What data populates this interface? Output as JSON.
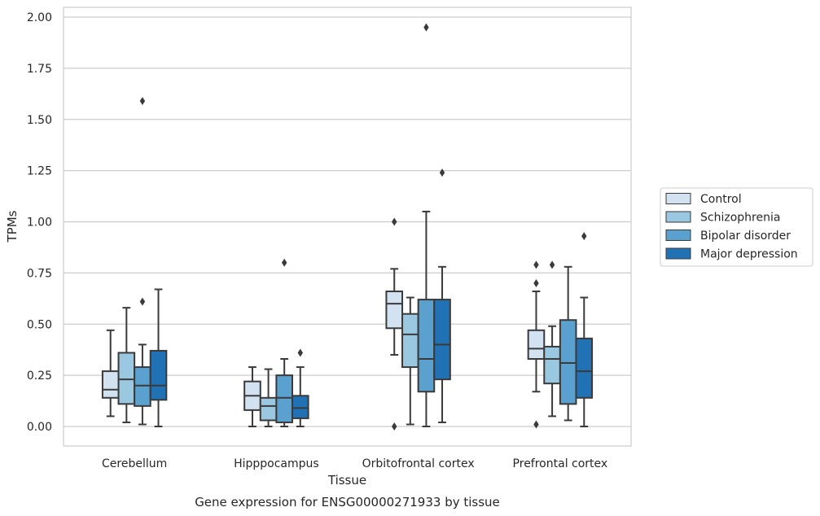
{
  "caption": "Gene expression for ENSG00000271933 by tissue",
  "chart_data": {
    "type": "boxplot",
    "xlabel": "Tissue",
    "ylabel": "TPMs",
    "ylim": [
      -0.1,
      2.05
    ],
    "yticks": [
      "0.00",
      "0.25",
      "0.50",
      "0.75",
      "1.00",
      "1.25",
      "1.50",
      "1.75",
      "2.00"
    ],
    "categories": [
      "Cerebellum",
      "Hipppocampus",
      "Orbitofrontal cortex",
      "Prefrontal cortex"
    ],
    "grid": "horizontal",
    "legend_position": "right",
    "series": [
      {
        "name": "Control",
        "color": "#d2e2f1",
        "boxes": [
          {
            "whislo": 0.05,
            "q1": 0.14,
            "med": 0.18,
            "q3": 0.27,
            "whishi": 0.47,
            "fliers": []
          },
          {
            "whislo": 0.0,
            "q1": 0.08,
            "med": 0.15,
            "q3": 0.22,
            "whishi": 0.29,
            "fliers": []
          },
          {
            "whislo": 0.35,
            "q1": 0.48,
            "med": 0.6,
            "q3": 0.66,
            "whishi": 0.77,
            "fliers": [
              1.0,
              0.0
            ]
          },
          {
            "whislo": 0.17,
            "q1": 0.33,
            "med": 0.38,
            "q3": 0.47,
            "whishi": 0.66,
            "fliers": [
              0.79,
              0.7,
              0.01
            ]
          }
        ]
      },
      {
        "name": "Schizophrenia",
        "color": "#9ac8e0",
        "boxes": [
          {
            "whislo": 0.02,
            "q1": 0.11,
            "med": 0.23,
            "q3": 0.36,
            "whishi": 0.58,
            "fliers": []
          },
          {
            "whislo": 0.0,
            "q1": 0.03,
            "med": 0.1,
            "q3": 0.14,
            "whishi": 0.28,
            "fliers": []
          },
          {
            "whislo": 0.01,
            "q1": 0.29,
            "med": 0.45,
            "q3": 0.55,
            "whishi": 0.63,
            "fliers": []
          },
          {
            "whislo": 0.05,
            "q1": 0.21,
            "med": 0.33,
            "q3": 0.39,
            "whishi": 0.49,
            "fliers": [
              0.79
            ]
          }
        ]
      },
      {
        "name": "Bipolar disorder",
        "color": "#5aa1cf",
        "boxes": [
          {
            "whislo": 0.01,
            "q1": 0.1,
            "med": 0.2,
            "q3": 0.29,
            "whishi": 0.4,
            "fliers": [
              1.59,
              0.61
            ]
          },
          {
            "whislo": 0.0,
            "q1": 0.02,
            "med": 0.14,
            "q3": 0.25,
            "whishi": 0.33,
            "fliers": [
              0.8
            ]
          },
          {
            "whislo": 0.0,
            "q1": 0.17,
            "med": 0.33,
            "q3": 0.62,
            "whishi": 1.05,
            "fliers": [
              1.95
            ]
          },
          {
            "whislo": 0.03,
            "q1": 0.11,
            "med": 0.31,
            "q3": 0.52,
            "whishi": 0.78,
            "fliers": []
          }
        ]
      },
      {
        "name": "Major depression",
        "color": "#2171b5",
        "boxes": [
          {
            "whislo": 0.0,
            "q1": 0.13,
            "med": 0.2,
            "q3": 0.37,
            "whishi": 0.67,
            "fliers": []
          },
          {
            "whislo": 0.0,
            "q1": 0.04,
            "med": 0.09,
            "q3": 0.15,
            "whishi": 0.29,
            "fliers": [
              0.36
            ]
          },
          {
            "whislo": 0.02,
            "q1": 0.23,
            "med": 0.4,
            "q3": 0.62,
            "whishi": 0.78,
            "fliers": [
              1.24
            ]
          },
          {
            "whislo": 0.0,
            "q1": 0.14,
            "med": 0.27,
            "q3": 0.43,
            "whishi": 0.63,
            "fliers": [
              0.93
            ]
          }
        ]
      }
    ]
  }
}
